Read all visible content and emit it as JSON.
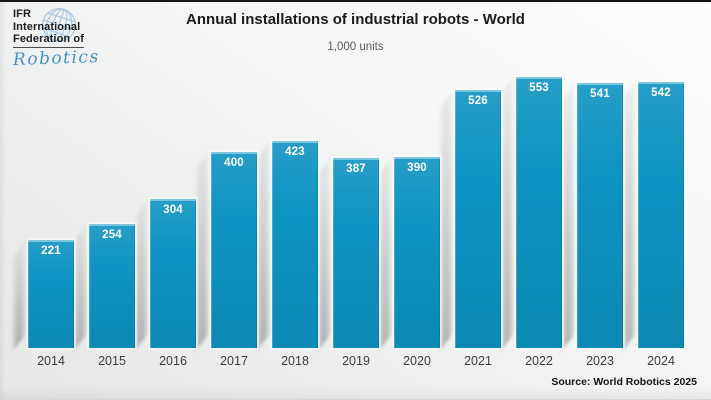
{
  "logo": {
    "line1": "IFR",
    "line2": "International",
    "line3": "Federation of",
    "script": "Robotics",
    "accent_color": "#4a90c8",
    "globe_color": "#a9c9e3"
  },
  "chart_data": {
    "type": "bar",
    "title": "Annual installations of industrial robots - World",
    "subtitle": "1,000 units",
    "categories": [
      "2014",
      "2015",
      "2016",
      "2017",
      "2018",
      "2019",
      "2020",
      "2021",
      "2022",
      "2023",
      "2024"
    ],
    "values": [
      221,
      254,
      304,
      400,
      423,
      387,
      390,
      526,
      553,
      541,
      542
    ],
    "series_name": "Annual installations of industrial robots (1,000 units)",
    "xlabel": "",
    "ylabel": "1,000 units",
    "ylim": [
      0,
      600
    ],
    "grid": false,
    "legend": false,
    "value_labels": "inside-top, white bold",
    "bar_color": "#0e93c2",
    "source": "Source: World Robotics 2025"
  }
}
